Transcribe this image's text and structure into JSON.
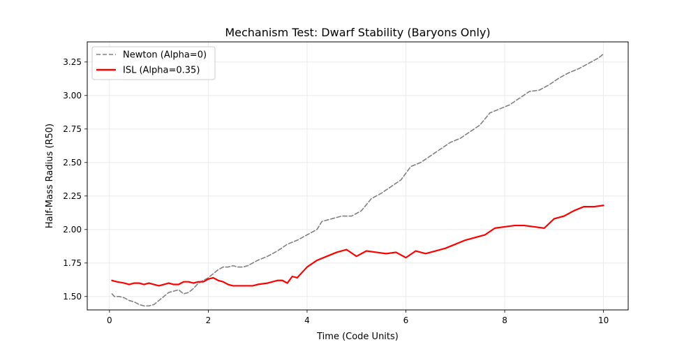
{
  "chart_data": {
    "type": "line",
    "title": "Mechanism Test: Dwarf Stability (Baryons Only)",
    "xlabel": "Time (Code Units)",
    "ylabel": "Half-Mass Radius (R50)",
    "xlim": [
      -0.45,
      10.5
    ],
    "ylim": [
      1.4,
      3.4
    ],
    "xticks": [
      0,
      2,
      4,
      6,
      8,
      10
    ],
    "xtick_labels": [
      "0",
      "2",
      "4",
      "6",
      "8",
      "10"
    ],
    "yticks": [
      1.5,
      1.75,
      2.0,
      2.25,
      2.5,
      2.75,
      3.0,
      3.25
    ],
    "ytick_labels": [
      "1.50",
      "1.75",
      "2.00",
      "2.25",
      "2.50",
      "2.75",
      "3.00",
      "3.25"
    ],
    "grid": true,
    "legend_position": "top-left",
    "series": [
      {
        "name": "Newton (Alpha=0)",
        "color": "#808080",
        "style": "dashed",
        "x": [
          0.05,
          0.1,
          0.2,
          0.3,
          0.4,
          0.5,
          0.6,
          0.7,
          0.8,
          0.9,
          1.0,
          1.1,
          1.2,
          1.3,
          1.4,
          1.5,
          1.6,
          1.7,
          1.8,
          1.9,
          2.0,
          2.1,
          2.2,
          2.3,
          2.4,
          2.5,
          2.6,
          2.7,
          2.8,
          2.9,
          3.0,
          3.2,
          3.4,
          3.6,
          3.8,
          4.0,
          4.2,
          4.3,
          4.5,
          4.7,
          4.9,
          5.1,
          5.3,
          5.5,
          5.7,
          5.9,
          6.1,
          6.3,
          6.5,
          6.7,
          6.9,
          7.1,
          7.3,
          7.5,
          7.7,
          7.9,
          8.1,
          8.3,
          8.5,
          8.7,
          8.9,
          9.1,
          9.3,
          9.5,
          9.7,
          9.9,
          10.0
        ],
        "values": [
          1.52,
          1.5,
          1.5,
          1.49,
          1.47,
          1.46,
          1.44,
          1.43,
          1.43,
          1.44,
          1.47,
          1.5,
          1.53,
          1.54,
          1.55,
          1.52,
          1.53,
          1.56,
          1.6,
          1.62,
          1.64,
          1.67,
          1.7,
          1.72,
          1.72,
          1.73,
          1.72,
          1.72,
          1.73,
          1.75,
          1.77,
          1.8,
          1.84,
          1.89,
          1.92,
          1.96,
          2.0,
          2.06,
          2.08,
          2.1,
          2.1,
          2.14,
          2.23,
          2.27,
          2.32,
          2.37,
          2.47,
          2.5,
          2.55,
          2.6,
          2.65,
          2.68,
          2.73,
          2.78,
          2.87,
          2.9,
          2.93,
          2.98,
          3.03,
          3.04,
          3.08,
          3.13,
          3.17,
          3.2,
          3.24,
          3.28,
          3.31
        ]
      },
      {
        "name": "ISL (Alpha=0.35)",
        "color": "#ff0000",
        "style": "solid",
        "x": [
          0.05,
          0.15,
          0.3,
          0.4,
          0.5,
          0.6,
          0.7,
          0.8,
          0.9,
          1.0,
          1.1,
          1.2,
          1.3,
          1.4,
          1.5,
          1.6,
          1.7,
          1.8,
          1.9,
          2.0,
          2.1,
          2.2,
          2.3,
          2.4,
          2.5,
          2.6,
          2.7,
          2.8,
          2.9,
          3.0,
          3.2,
          3.4,
          3.5,
          3.6,
          3.7,
          3.8,
          4.0,
          4.2,
          4.4,
          4.6,
          4.8,
          5.0,
          5.2,
          5.4,
          5.6,
          5.8,
          6.0,
          6.2,
          6.4,
          6.6,
          6.8,
          7.0,
          7.2,
          7.4,
          7.6,
          7.8,
          8.0,
          8.2,
          8.4,
          8.6,
          8.8,
          9.0,
          9.2,
          9.4,
          9.6,
          9.8,
          10.0
        ],
        "values": [
          1.62,
          1.61,
          1.6,
          1.59,
          1.6,
          1.6,
          1.59,
          1.6,
          1.59,
          1.58,
          1.59,
          1.6,
          1.59,
          1.59,
          1.61,
          1.61,
          1.6,
          1.61,
          1.61,
          1.63,
          1.64,
          1.62,
          1.61,
          1.59,
          1.58,
          1.58,
          1.58,
          1.58,
          1.58,
          1.59,
          1.6,
          1.62,
          1.62,
          1.6,
          1.65,
          1.64,
          1.72,
          1.77,
          1.8,
          1.83,
          1.85,
          1.8,
          1.84,
          1.83,
          1.82,
          1.83,
          1.79,
          1.84,
          1.82,
          1.84,
          1.86,
          1.89,
          1.92,
          1.94,
          1.96,
          2.01,
          2.02,
          2.03,
          2.03,
          2.02,
          2.01,
          2.08,
          2.1,
          2.14,
          2.17,
          2.17,
          2.18
        ]
      }
    ]
  }
}
